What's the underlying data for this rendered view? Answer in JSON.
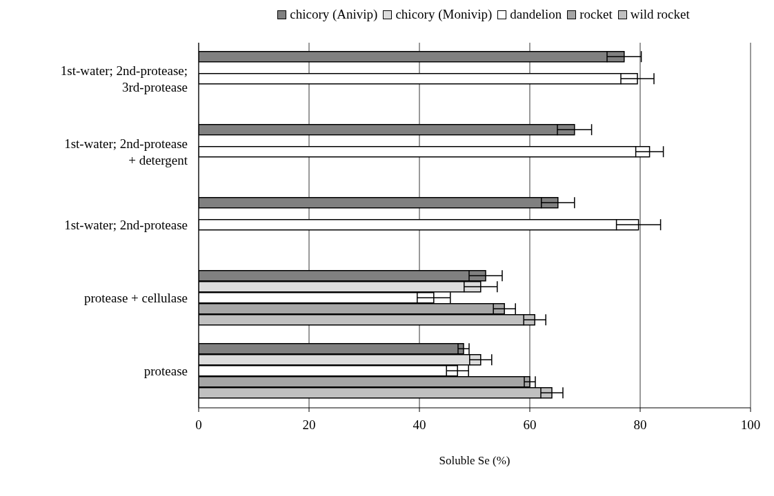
{
  "chart_data": {
    "type": "bar",
    "orientation": "horizontal",
    "xlabel": "Soluble Se (%)",
    "categories": [
      "1st-water; 2nd-protease; 3rd-protease",
      "1st-water; 2nd-protease + detergent",
      "1st-water; 2nd-protease",
      "protease + cellulase",
      "protease"
    ],
    "series": [
      {
        "name": "chicory (Anivip)",
        "color": "#808080",
        "values": [
          77.1,
          68.1,
          65.1,
          52.0,
          48.0
        ],
        "errors": [
          3.1,
          3.1,
          3,
          3,
          1
        ]
      },
      {
        "name": "chicory (Monivip)",
        "color": "#dcdcdc",
        "values": [
          null,
          null,
          null,
          51.1,
          51.1
        ],
        "errors": [
          null,
          null,
          null,
          3,
          2
        ]
      },
      {
        "name": "dandelion",
        "color": "#ffffff",
        "values": [
          79.5,
          81.7,
          79.7,
          42.6,
          46.9
        ],
        "errors": [
          3,
          2.5,
          4,
          3,
          2
        ]
      },
      {
        "name": "rocket",
        "color": "#a6a6a6",
        "values": [
          null,
          null,
          null,
          55.4,
          60.0
        ],
        "errors": [
          null,
          null,
          null,
          2,
          1
        ]
      },
      {
        "name": "wild rocket",
        "color": "#c0c0c0",
        "values": [
          null,
          null,
          null,
          60.9,
          64.0
        ],
        "errors": [
          null,
          null,
          null,
          2,
          2
        ]
      }
    ],
    "xlim": [
      0,
      100
    ],
    "xticks": [
      0,
      20,
      40,
      60,
      80,
      100
    ],
    "grid": "x",
    "legend": "top"
  }
}
